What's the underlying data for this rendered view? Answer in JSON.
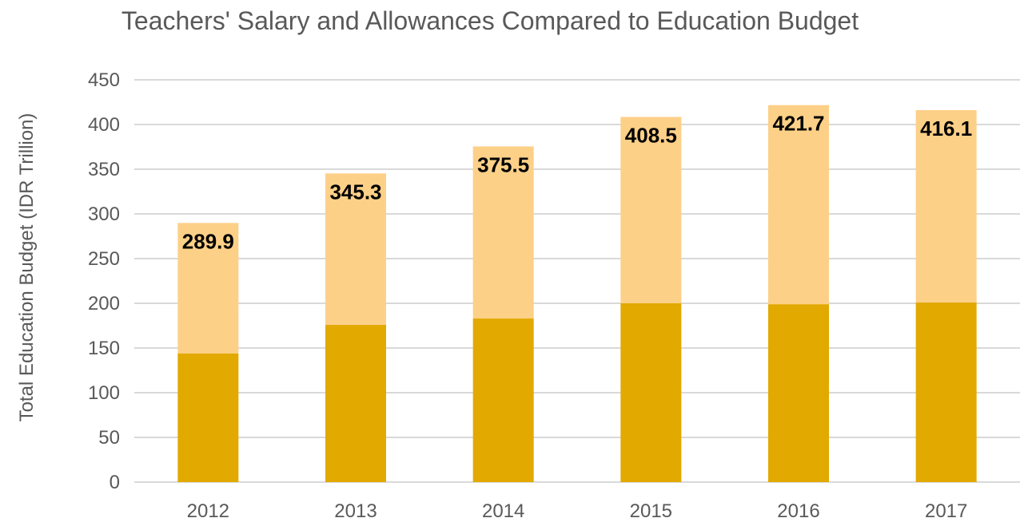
{
  "chart_data": {
    "type": "bar",
    "stacked": true,
    "title": "Teachers' Salary and Allowances Compared to Education Budget",
    "xlabel": "",
    "ylabel": "Total Education Budget (IDR Trillion)",
    "ylim": [
      0,
      450
    ],
    "yticks": [
      0,
      50,
      100,
      150,
      200,
      250,
      300,
      350,
      400,
      450
    ],
    "grid": true,
    "legend": "none",
    "categories": [
      "2012",
      "2013",
      "2014",
      "2015",
      "2016",
      "2017"
    ],
    "totals": [
      289.9,
      345.3,
      375.5,
      408.5,
      421.7,
      416.1
    ],
    "total_labels": [
      "289.9",
      "345.3",
      "375.5",
      "408.5",
      "421.7",
      "416.1"
    ],
    "series": [
      {
        "values": [
          144,
          176,
          183,
          200,
          199,
          201
        ],
        "color": "#E2A900"
      },
      {
        "values": [
          145.9,
          169.3,
          192.5,
          208.5,
          222.7,
          215.1
        ],
        "color": "#FDD088"
      }
    ],
    "colors": {
      "gridline": "#D9D9D9",
      "axis_text": "#595959",
      "label_text": "#000000"
    }
  }
}
